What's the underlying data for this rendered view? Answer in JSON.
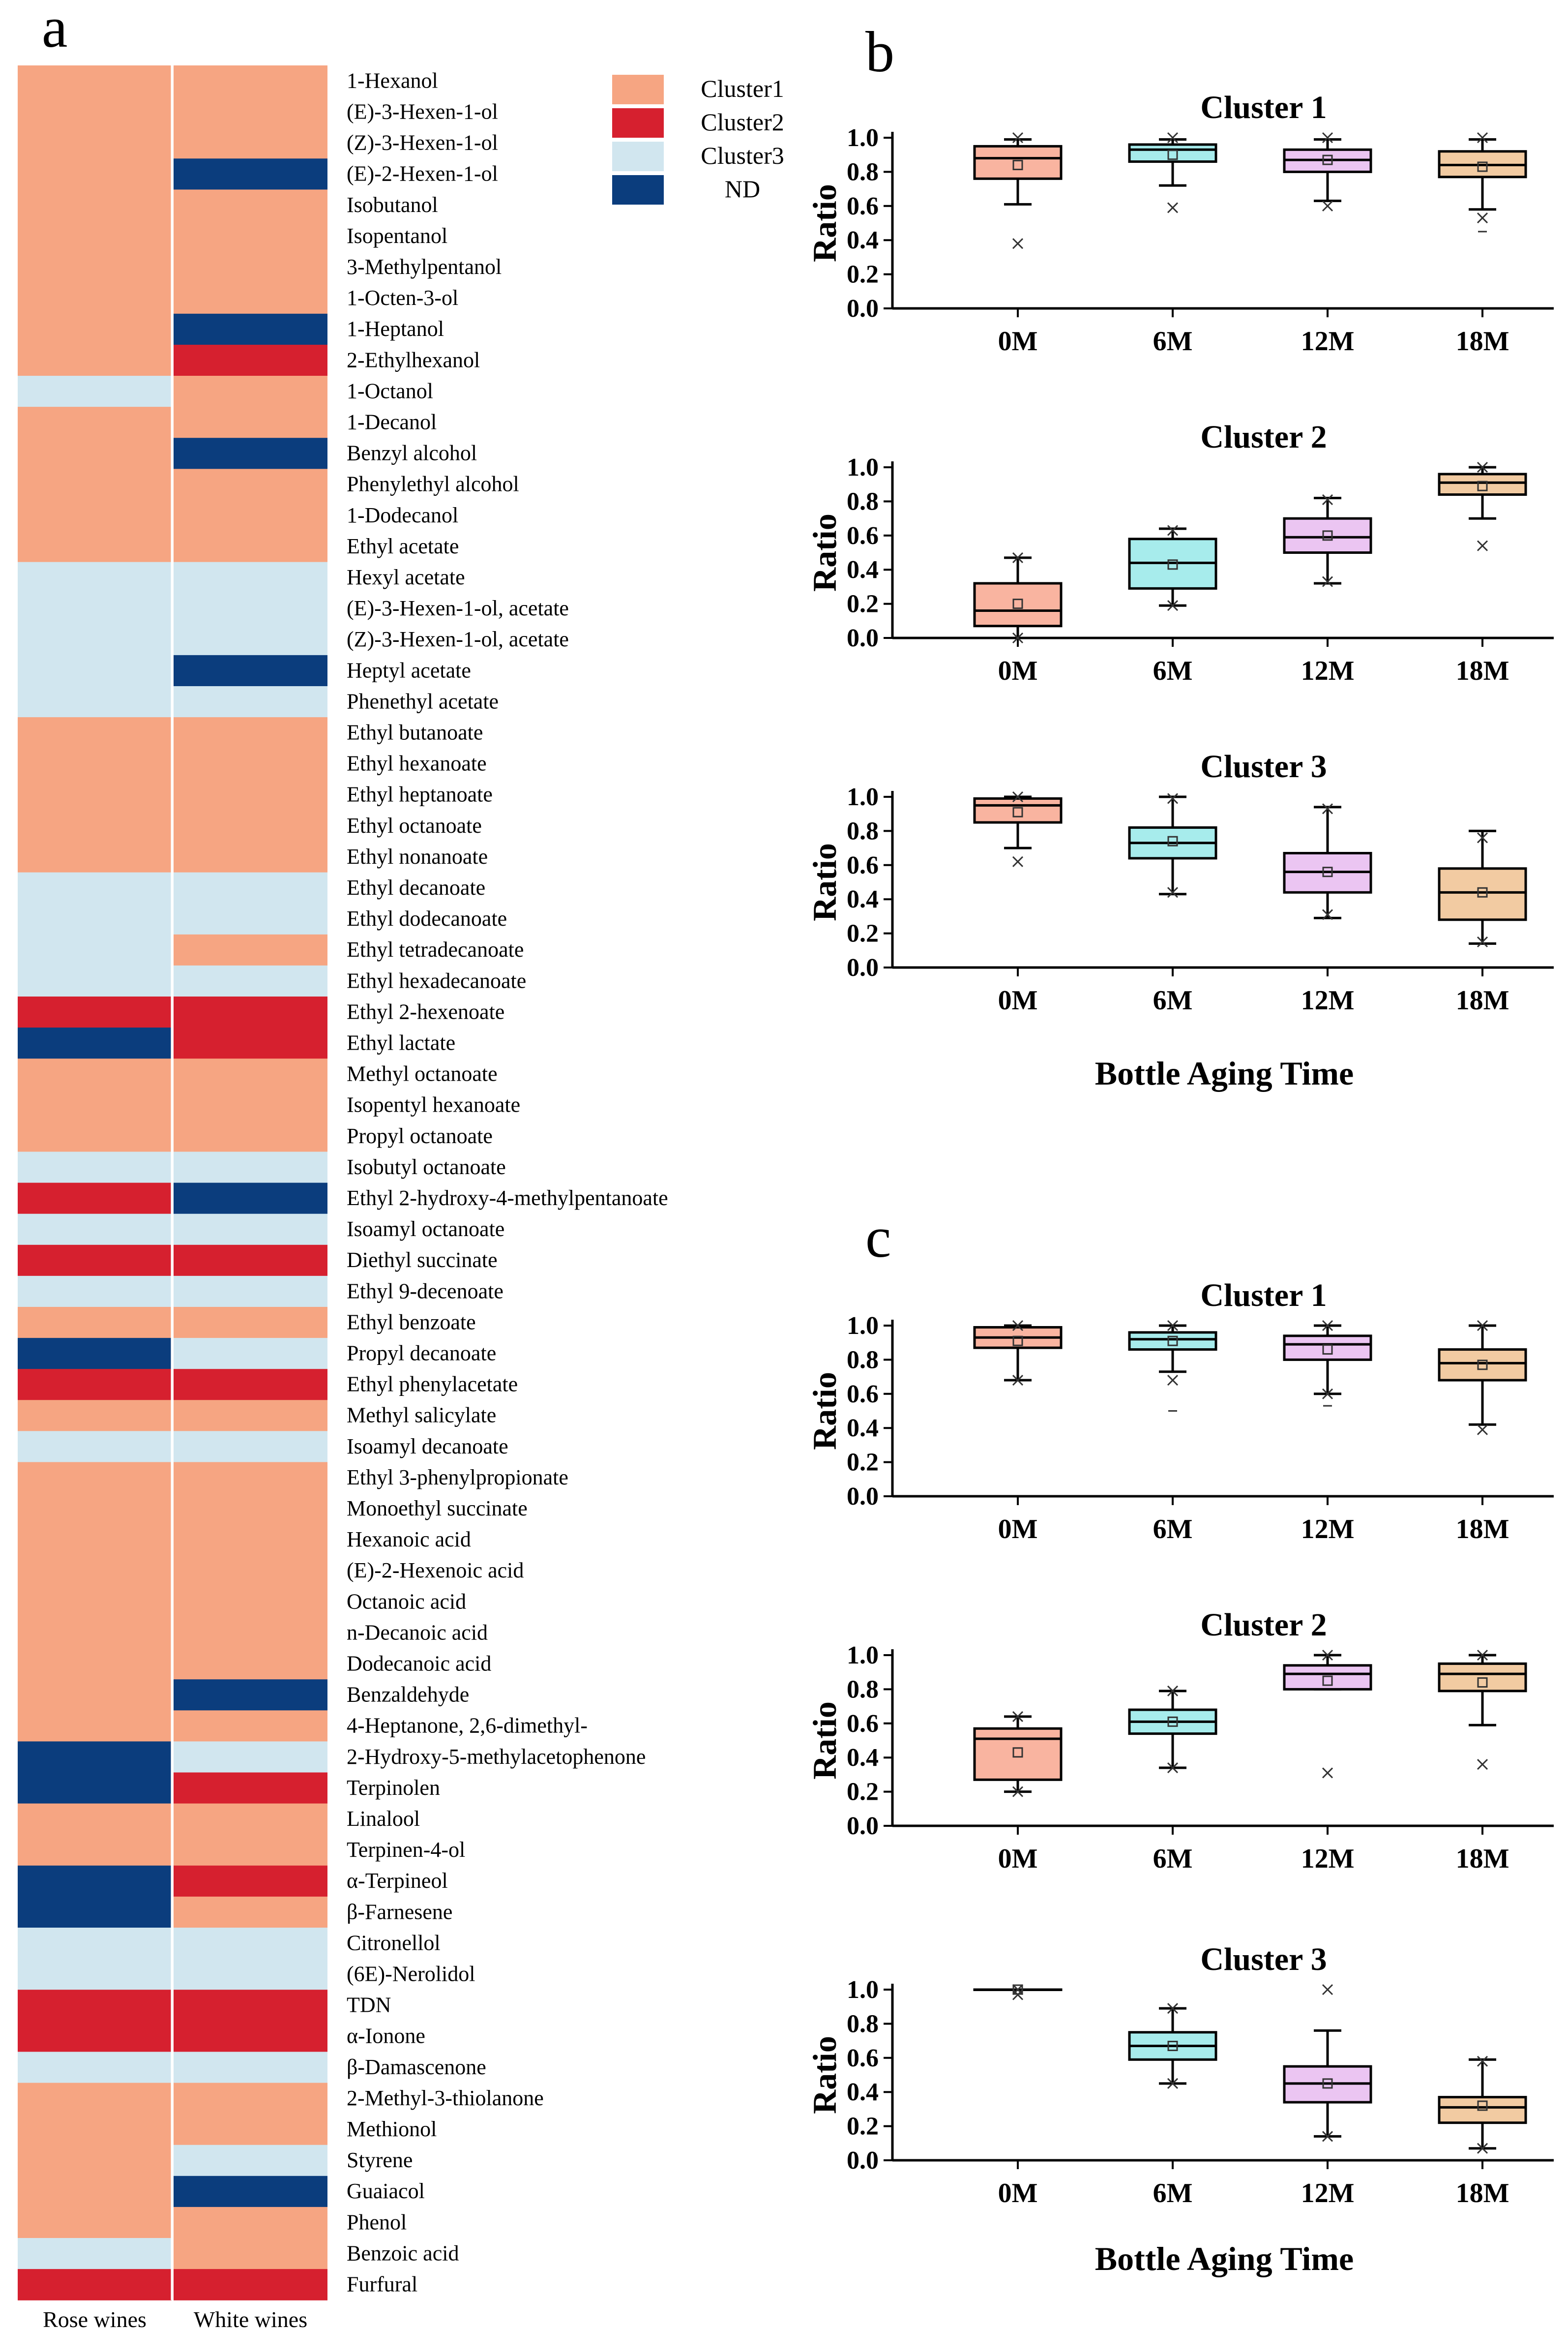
{
  "panel_labels": {
    "a": "a",
    "b": "b",
    "c": "c"
  },
  "legend": {
    "items": [
      {
        "key": "c1",
        "label": "Cluster1",
        "color": "#f6a582"
      },
      {
        "key": "c2",
        "label": "Cluster2",
        "color": "#d6202f"
      },
      {
        "key": "c3",
        "label": "Cluster3",
        "color": "#d1e6ef"
      },
      {
        "key": "nd",
        "label": "ND",
        "color": "#0b3d7d"
      }
    ]
  },
  "box_fill_colors": [
    "#f9b4a0",
    "#a7ecec",
    "#ebc5f2",
    "#f2cba2"
  ],
  "chart_data": [
    {
      "type": "heatmap",
      "title": "",
      "columns": [
        "Rose wines",
        "White wines"
      ],
      "rows": [
        [
          "1-Hexanol",
          "c1",
          "c1"
        ],
        [
          "(E)-3-Hexen-1-ol",
          "c1",
          "c1"
        ],
        [
          "(Z)-3-Hexen-1-ol",
          "c1",
          "c1"
        ],
        [
          "(E)-2-Hexen-1-ol",
          "c1",
          "nd"
        ],
        [
          "Isobutanol",
          "c1",
          "c1"
        ],
        [
          "Isopentanol",
          "c1",
          "c1"
        ],
        [
          "3-Methylpentanol",
          "c1",
          "c1"
        ],
        [
          "1-Octen-3-ol",
          "c1",
          "c1"
        ],
        [
          "1-Heptanol",
          "c1",
          "nd"
        ],
        [
          "2-Ethylhexanol",
          "c1",
          "c2"
        ],
        [
          "1-Octanol",
          "c3",
          "c1"
        ],
        [
          "1-Decanol",
          "c1",
          "c1"
        ],
        [
          "Benzyl alcohol",
          "c1",
          "nd"
        ],
        [
          "Phenylethyl alcohol",
          "c1",
          "c1"
        ],
        [
          "1-Dodecanol",
          "c1",
          "c1"
        ],
        [
          "Ethyl acetate",
          "c1",
          "c1"
        ],
        [
          "Hexyl acetate",
          "c3",
          "c3"
        ],
        [
          "(E)-3-Hexen-1-ol, acetate",
          "c3",
          "c3"
        ],
        [
          "(Z)-3-Hexen-1-ol, acetate",
          "c3",
          "c3"
        ],
        [
          "Heptyl acetate",
          "c3",
          "nd"
        ],
        [
          "Phenethyl acetate",
          "c3",
          "c3"
        ],
        [
          "Ethyl butanoate",
          "c1",
          "c1"
        ],
        [
          "Ethyl hexanoate",
          "c1",
          "c1"
        ],
        [
          "Ethyl heptanoate",
          "c1",
          "c1"
        ],
        [
          "Ethyl octanoate",
          "c1",
          "c1"
        ],
        [
          "Ethyl nonanoate",
          "c1",
          "c1"
        ],
        [
          "Ethyl decanoate",
          "c3",
          "c3"
        ],
        [
          "Ethyl dodecanoate",
          "c3",
          "c3"
        ],
        [
          "Ethyl tetradecanoate",
          "c3",
          "c1"
        ],
        [
          "Ethyl hexadecanoate",
          "c3",
          "c3"
        ],
        [
          "Ethyl 2-hexenoate",
          "c2",
          "c2"
        ],
        [
          "Ethyl lactate",
          "nd",
          "c2"
        ],
        [
          "Methyl octanoate",
          "c1",
          "c1"
        ],
        [
          "Isopentyl hexanoate",
          "c1",
          "c1"
        ],
        [
          "Propyl octanoate",
          "c1",
          "c1"
        ],
        [
          "Isobutyl octanoate",
          "c3",
          "c3"
        ],
        [
          "Ethyl 2-hydroxy-4-methylpentanoate",
          "c2",
          "nd"
        ],
        [
          "Isoamyl octanoate",
          "c3",
          "c3"
        ],
        [
          "Diethyl succinate",
          "c2",
          "c2"
        ],
        [
          "Ethyl 9-decenoate",
          "c3",
          "c3"
        ],
        [
          "Ethyl benzoate",
          "c1",
          "c1"
        ],
        [
          "Propyl decanoate",
          "nd",
          "c3"
        ],
        [
          "Ethyl phenylacetate",
          "c2",
          "c2"
        ],
        [
          "Methyl salicylate",
          "c1",
          "c1"
        ],
        [
          "Isoamyl decanoate",
          "c3",
          "c3"
        ],
        [
          "Ethyl 3-phenylpropionate",
          "c1",
          "c1"
        ],
        [
          "Monoethyl succinate",
          "c1",
          "c1"
        ],
        [
          "Hexanoic acid",
          "c1",
          "c1"
        ],
        [
          "(E)-2-Hexenoic acid",
          "c1",
          "c1"
        ],
        [
          "Octanoic acid",
          "c1",
          "c1"
        ],
        [
          "n-Decanoic acid",
          "c1",
          "c1"
        ],
        [
          "Dodecanoic acid",
          "c1",
          "c1"
        ],
        [
          "Benzaldehyde",
          "c1",
          "nd"
        ],
        [
          "4-Heptanone, 2,6-dimethyl-",
          "c1",
          "c1"
        ],
        [
          "2-Hydroxy-5-methylacetophenone",
          "nd",
          "c3"
        ],
        [
          "Terpinolen",
          "nd",
          "c2"
        ],
        [
          "Linalool",
          "c1",
          "c1"
        ],
        [
          "Terpinen-4-ol",
          "c1",
          "c1"
        ],
        [
          "α-Terpineol",
          "nd",
          "c2"
        ],
        [
          "β-Farnesene",
          "nd",
          "c1"
        ],
        [
          "Citronellol",
          "c3",
          "c3"
        ],
        [
          "(6E)-Nerolidol",
          "c3",
          "c3"
        ],
        [
          "TDN",
          "c2",
          "c2"
        ],
        [
          "α-Ionone",
          "c2",
          "c2"
        ],
        [
          "β-Damascenone",
          "c3",
          "c3"
        ],
        [
          "2-Methyl-3-thiolanone",
          "c1",
          "c1"
        ],
        [
          "Methionol",
          "c1",
          "c1"
        ],
        [
          "Styrene",
          "c1",
          "c3"
        ],
        [
          "Guaiacol",
          "c1",
          "nd"
        ],
        [
          "Phenol",
          "c1",
          "c1"
        ],
        [
          "Benzoic acid",
          "c3",
          "c1"
        ],
        [
          "Furfural",
          "c2",
          "c2"
        ]
      ]
    },
    {
      "type": "box",
      "panel": "b",
      "title": "Cluster 1",
      "ylabel": "Ratio",
      "ylim": [
        0,
        1
      ],
      "yticks": [
        "0.0",
        "0.2",
        "0.4",
        "0.6",
        "0.8",
        "1.0"
      ],
      "categories": [
        "0M",
        "6M",
        "12M",
        "18M"
      ],
      "boxes": [
        {
          "q1": 0.76,
          "median": 0.88,
          "q3": 0.95,
          "mean": 0.84,
          "wlo": 0.61,
          "whi": 0.99,
          "mn": 0.38,
          "mx": 1.0,
          "outliers": []
        },
        {
          "q1": 0.86,
          "median": 0.93,
          "q3": 0.96,
          "mean": 0.9,
          "wlo": 0.72,
          "whi": 0.99,
          "mn": 0.59,
          "mx": 1.0,
          "outliers": []
        },
        {
          "q1": 0.8,
          "median": 0.87,
          "q3": 0.93,
          "mean": 0.87,
          "wlo": 0.63,
          "whi": 0.99,
          "mn": 0.6,
          "mx": 1.0,
          "outliers": []
        },
        {
          "q1": 0.77,
          "median": 0.84,
          "q3": 0.92,
          "mean": 0.83,
          "wlo": 0.58,
          "whi": 0.99,
          "mn": 0.53,
          "mx": 1.0,
          "outliers": [
            0.45
          ]
        }
      ]
    },
    {
      "type": "box",
      "panel": "b",
      "title": "Cluster 2",
      "ylabel": "Ratio",
      "ylim": [
        0,
        1
      ],
      "yticks": [
        "0.0",
        "0.2",
        "0.4",
        "0.6",
        "0.8",
        "1.0"
      ],
      "categories": [
        "0M",
        "6M",
        "12M",
        "18M"
      ],
      "boxes": [
        {
          "q1": 0.07,
          "median": 0.16,
          "q3": 0.32,
          "mean": 0.2,
          "wlo": 0.0,
          "whi": 0.47,
          "mn": 0.0,
          "mx": 0.47,
          "outliers": []
        },
        {
          "q1": 0.29,
          "median": 0.44,
          "q3": 0.58,
          "mean": 0.43,
          "wlo": 0.19,
          "whi": 0.64,
          "mn": 0.19,
          "mx": 0.63,
          "outliers": []
        },
        {
          "q1": 0.5,
          "median": 0.59,
          "q3": 0.7,
          "mean": 0.6,
          "wlo": 0.32,
          "whi": 0.82,
          "mn": 0.33,
          "mx": 0.81,
          "outliers": []
        },
        {
          "q1": 0.84,
          "median": 0.91,
          "q3": 0.96,
          "mean": 0.89,
          "wlo": 0.7,
          "whi": 1.0,
          "mn": 0.54,
          "mx": 1.0,
          "outliers": []
        }
      ]
    },
    {
      "type": "box",
      "panel": "b",
      "title": "Cluster 3",
      "ylabel": "Ratio",
      "xlabel": "Bottle Aging Time",
      "ylim": [
        0,
        1
      ],
      "yticks": [
        "0.0",
        "0.2",
        "0.4",
        "0.6",
        "0.8",
        "1.0"
      ],
      "categories": [
        "0M",
        "6M",
        "12M",
        "18M"
      ],
      "boxes": [
        {
          "q1": 0.85,
          "median": 0.95,
          "q3": 0.99,
          "mean": 0.91,
          "wlo": 0.7,
          "whi": 1.0,
          "mn": 0.62,
          "mx": 1.0,
          "outliers": []
        },
        {
          "q1": 0.64,
          "median": 0.73,
          "q3": 0.82,
          "mean": 0.74,
          "wlo": 0.43,
          "whi": 1.0,
          "mn": 0.44,
          "mx": 0.99,
          "outliers": []
        },
        {
          "q1": 0.44,
          "median": 0.56,
          "q3": 0.67,
          "mean": 0.56,
          "wlo": 0.29,
          "whi": 0.94,
          "mn": 0.31,
          "mx": 0.93,
          "outliers": []
        },
        {
          "q1": 0.28,
          "median": 0.44,
          "q3": 0.58,
          "mean": 0.44,
          "wlo": 0.14,
          "whi": 0.8,
          "mn": 0.15,
          "mx": 0.76,
          "outliers": []
        }
      ]
    },
    {
      "type": "box",
      "panel": "c",
      "title": "Cluster 1",
      "ylabel": "Ratio",
      "ylim": [
        0,
        1
      ],
      "yticks": [
        "0.0",
        "0.2",
        "0.4",
        "0.6",
        "0.8",
        "1.0"
      ],
      "categories": [
        "0M",
        "6M",
        "12M",
        "18M"
      ],
      "boxes": [
        {
          "q1": 0.87,
          "median": 0.93,
          "q3": 0.99,
          "mean": 0.91,
          "wlo": 0.68,
          "whi": 1.0,
          "mn": 0.68,
          "mx": 1.0,
          "outliers": []
        },
        {
          "q1": 0.86,
          "median": 0.92,
          "q3": 0.96,
          "mean": 0.91,
          "wlo": 0.73,
          "whi": 1.0,
          "mn": 0.68,
          "mx": 1.0,
          "outliers": [
            0.5
          ]
        },
        {
          "q1": 0.8,
          "median": 0.89,
          "q3": 0.94,
          "mean": 0.86,
          "wlo": 0.6,
          "whi": 1.0,
          "mn": 0.6,
          "mx": 1.0,
          "outliers": [
            0.53
          ]
        },
        {
          "q1": 0.68,
          "median": 0.78,
          "q3": 0.86,
          "mean": 0.77,
          "wlo": 0.42,
          "whi": 1.0,
          "mn": 0.39,
          "mx": 1.0,
          "outliers": []
        }
      ]
    },
    {
      "type": "box",
      "panel": "c",
      "title": "Cluster 2",
      "ylabel": "Ratio",
      "ylim": [
        0,
        1
      ],
      "yticks": [
        "0.0",
        "0.2",
        "0.4",
        "0.6",
        "0.8",
        "1.0"
      ],
      "categories": [
        "0M",
        "6M",
        "12M",
        "18M"
      ],
      "boxes": [
        {
          "q1": 0.27,
          "median": 0.51,
          "q3": 0.57,
          "mean": 0.43,
          "wlo": 0.2,
          "whi": 0.64,
          "mn": 0.2,
          "mx": 0.64,
          "outliers": []
        },
        {
          "q1": 0.54,
          "median": 0.61,
          "q3": 0.68,
          "mean": 0.61,
          "wlo": 0.34,
          "whi": 0.79,
          "mn": 0.34,
          "mx": 0.79,
          "outliers": []
        },
        {
          "q1": 0.8,
          "median": 0.89,
          "q3": 0.94,
          "mean": 0.85,
          "wlo": 0.8,
          "whi": 1.0,
          "mn": 0.31,
          "mx": 1.0,
          "outliers": []
        },
        {
          "q1": 0.79,
          "median": 0.89,
          "q3": 0.95,
          "mean": 0.84,
          "wlo": 0.59,
          "whi": 1.0,
          "mn": 0.36,
          "mx": 1.0,
          "outliers": []
        }
      ]
    },
    {
      "type": "box",
      "panel": "c",
      "title": "Cluster 3",
      "ylabel": "Ratio",
      "xlabel": "Bottle Aging Time",
      "ylim": [
        0,
        1
      ],
      "yticks": [
        "0.0",
        "0.2",
        "0.4",
        "0.6",
        "0.8",
        "1.0"
      ],
      "categories": [
        "0M",
        "6M",
        "12M",
        "18M"
      ],
      "boxes": [
        {
          "q1": 1.0,
          "median": 1.0,
          "q3": 1.0,
          "mean": 1.0,
          "wlo": 1.0,
          "whi": 1.0,
          "mn": 0.97,
          "mx": 1.0,
          "outliers": []
        },
        {
          "q1": 0.59,
          "median": 0.67,
          "q3": 0.75,
          "mean": 0.67,
          "wlo": 0.45,
          "whi": 0.89,
          "mn": 0.45,
          "mx": 0.89,
          "outliers": []
        },
        {
          "q1": 0.34,
          "median": 0.45,
          "q3": 0.55,
          "mean": 0.45,
          "wlo": 0.14,
          "whi": 0.76,
          "mn": 0.14,
          "mx": 1.0,
          "outliers": []
        },
        {
          "q1": 0.22,
          "median": 0.31,
          "q3": 0.37,
          "mean": 0.32,
          "wlo": 0.07,
          "whi": 0.59,
          "mn": 0.07,
          "mx": 0.58,
          "outliers": []
        }
      ]
    }
  ]
}
